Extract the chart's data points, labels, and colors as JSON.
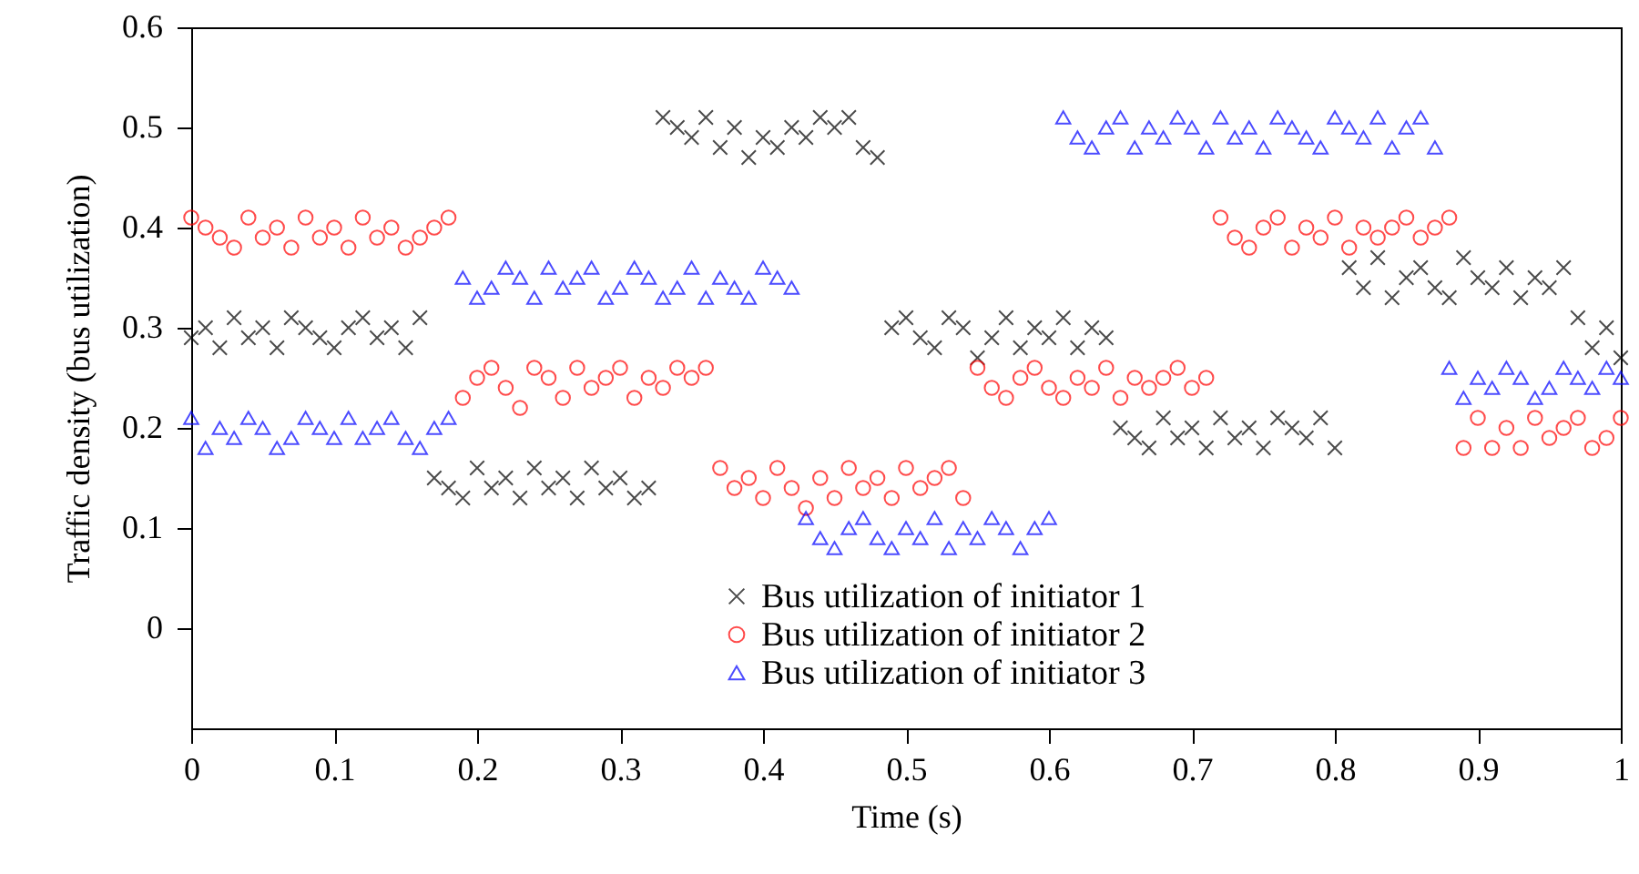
{
  "chart_data": {
    "type": "scatter",
    "xlabel": "Time (s)",
    "ylabel": "Traffic density (bus utilization)",
    "x": [
      0,
      0.01,
      0.02,
      0.03,
      0.04,
      0.05,
      0.06,
      0.07,
      0.08,
      0.09,
      0.1,
      0.11,
      0.12,
      0.13,
      0.14,
      0.15,
      0.16,
      0.17,
      0.18,
      0.19,
      0.2,
      0.21,
      0.22,
      0.23,
      0.24,
      0.25,
      0.26,
      0.27,
      0.28,
      0.29,
      0.3,
      0.31,
      0.32,
      0.33,
      0.34,
      0.35,
      0.36,
      0.37,
      0.38,
      0.39,
      0.4,
      0.41,
      0.42,
      0.43,
      0.44,
      0.45,
      0.46,
      0.47,
      0.48,
      0.49,
      0.5,
      0.51,
      0.52,
      0.53,
      0.54,
      0.55,
      0.56,
      0.57,
      0.58,
      0.59,
      0.6,
      0.61,
      0.62,
      0.63,
      0.64,
      0.65,
      0.66,
      0.67,
      0.68,
      0.69,
      0.7,
      0.71,
      0.72,
      0.73,
      0.74,
      0.75,
      0.76,
      0.77,
      0.78,
      0.79,
      0.8,
      0.81,
      0.82,
      0.83,
      0.84,
      0.85,
      0.86,
      0.87,
      0.88,
      0.89,
      0.9,
      0.91,
      0.92,
      0.93,
      0.94,
      0.95,
      0.96,
      0.97,
      0.98,
      0.99,
      1
    ],
    "series": [
      {
        "name": "Bus utilization of initiator 1",
        "color": "#000000",
        "marker": "cross",
        "values": [
          0.29,
          0.3,
          0.28,
          0.31,
          0.29,
          0.3,
          0.28,
          0.31,
          0.3,
          0.29,
          0.28,
          0.3,
          0.31,
          0.29,
          0.3,
          0.28,
          0.31,
          0.15,
          0.14,
          0.13,
          0.16,
          0.14,
          0.15,
          0.13,
          0.16,
          0.14,
          0.15,
          0.13,
          0.16,
          0.14,
          0.15,
          0.13,
          0.14,
          0.51,
          0.5,
          0.49,
          0.51,
          0.48,
          0.5,
          0.47,
          0.49,
          0.48,
          0.5,
          0.49,
          0.51,
          0.5,
          0.51,
          0.48,
          0.47,
          0.3,
          0.31,
          0.29,
          0.28,
          0.31,
          0.3,
          0.27,
          0.29,
          0.31,
          0.28,
          0.3,
          0.29,
          0.31,
          0.28,
          0.3,
          0.29,
          0.2,
          0.19,
          0.18,
          0.21,
          0.19,
          0.2,
          0.18,
          0.21,
          0.19,
          0.2,
          0.18,
          0.21,
          0.2,
          0.19,
          0.21,
          0.18,
          0.36,
          0.34,
          0.37,
          0.33,
          0.35,
          0.36,
          0.34,
          0.33,
          0.37,
          0.35,
          0.34,
          0.36,
          0.33,
          0.35,
          0.34,
          0.36,
          0.31,
          0.28,
          0.3,
          0.27
        ]
      },
      {
        "name": "Bus utilization of initiator 2",
        "color": "#ff0000",
        "marker": "circle",
        "values": [
          0.41,
          0.4,
          0.39,
          0.38,
          0.41,
          0.39,
          0.4,
          0.38,
          0.41,
          0.39,
          0.4,
          0.38,
          0.41,
          0.39,
          0.4,
          0.38,
          0.39,
          0.4,
          0.41,
          0.23,
          0.25,
          0.26,
          0.24,
          0.22,
          0.26,
          0.25,
          0.23,
          0.26,
          0.24,
          0.25,
          0.26,
          0.23,
          0.25,
          0.24,
          0.26,
          0.25,
          0.26,
          0.16,
          0.14,
          0.15,
          0.13,
          0.16,
          0.14,
          0.12,
          0.15,
          0.13,
          0.16,
          0.14,
          0.15,
          0.13,
          0.16,
          0.14,
          0.15,
          0.16,
          0.13,
          0.26,
          0.24,
          0.23,
          0.25,
          0.26,
          0.24,
          0.23,
          0.25,
          0.24,
          0.26,
          0.23,
          0.25,
          0.24,
          0.25,
          0.26,
          0.24,
          0.25,
          0.41,
          0.39,
          0.38,
          0.4,
          0.41,
          0.38,
          0.4,
          0.39,
          0.41,
          0.38,
          0.4,
          0.39,
          0.4,
          0.41,
          0.39,
          0.4,
          0.41,
          0.18,
          0.21,
          0.18,
          0.2,
          0.18,
          0.21,
          0.19,
          0.2,
          0.21,
          0.18,
          0.19,
          0.21
        ]
      },
      {
        "name": "Bus utilization of initiator 3",
        "color": "#0000ff",
        "marker": "triangle",
        "values": [
          0.21,
          0.18,
          0.2,
          0.19,
          0.21,
          0.2,
          0.18,
          0.19,
          0.21,
          0.2,
          0.19,
          0.21,
          0.19,
          0.2,
          0.21,
          0.19,
          0.18,
          0.2,
          0.21,
          0.35,
          0.33,
          0.34,
          0.36,
          0.35,
          0.33,
          0.36,
          0.34,
          0.35,
          0.36,
          0.33,
          0.34,
          0.36,
          0.35,
          0.33,
          0.34,
          0.36,
          0.33,
          0.35,
          0.34,
          0.33,
          0.36,
          0.35,
          0.34,
          0.11,
          0.09,
          0.08,
          0.1,
          0.11,
          0.09,
          0.08,
          0.1,
          0.09,
          0.11,
          0.08,
          0.1,
          0.09,
          0.11,
          0.1,
          0.08,
          0.1,
          0.11,
          0.51,
          0.49,
          0.48,
          0.5,
          0.51,
          0.48,
          0.5,
          0.49,
          0.51,
          0.5,
          0.48,
          0.51,
          0.49,
          0.5,
          0.48,
          0.51,
          0.5,
          0.49,
          0.48,
          0.51,
          0.5,
          0.49,
          0.51,
          0.48,
          0.5,
          0.51,
          0.48,
          0.26,
          0.23,
          0.25,
          0.24,
          0.26,
          0.25,
          0.23,
          0.24,
          0.26,
          0.25,
          0.24,
          0.26,
          0.25
        ]
      }
    ],
    "xlim": [
      0,
      1
    ],
    "xticks": [
      0,
      0.1,
      0.2,
      0.3,
      0.4,
      0.5,
      0.6,
      0.7,
      0.8,
      0.9,
      1
    ],
    "ylim": [
      -0.1,
      0.6
    ],
    "yticks": [
      0,
      0.1,
      0.2,
      0.3,
      0.4,
      0.5,
      0.6
    ],
    "grid": false,
    "legend": "bottom"
  }
}
